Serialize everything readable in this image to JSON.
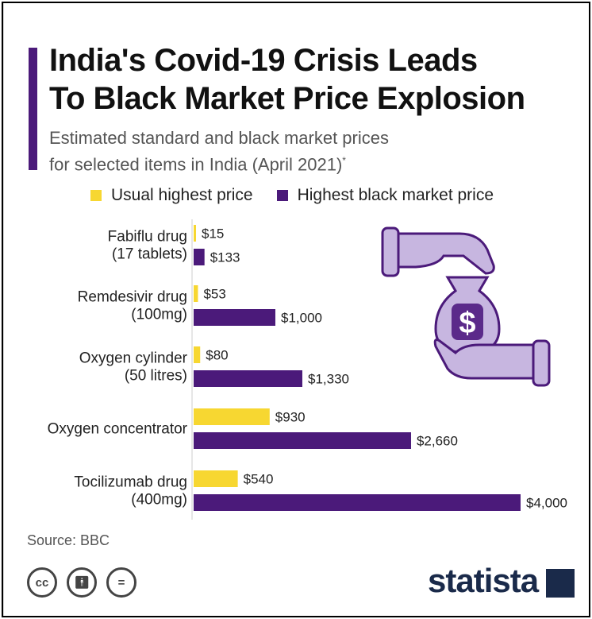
{
  "header": {
    "title_line1": "India's Covid-19 Crisis Leads",
    "title_line2": "To Black Market Price Explosion",
    "subtitle_line1": "Estimated standard and black market prices",
    "subtitle_line2": "for selected items in India (April 2021)",
    "subtitle_mark": "*"
  },
  "colors": {
    "usual": "#f7d731",
    "black": "#4b1a7a",
    "accent": "#4b1a7a"
  },
  "chart_data": {
    "type": "bar",
    "orientation": "horizontal",
    "title": "India's Covid-19 Crisis Leads To Black Market Price Explosion",
    "categories": [
      [
        "Fabiflu drug",
        "(17 tablets)"
      ],
      [
        "Remdesivir drug",
        "(100mg)"
      ],
      [
        "Oxygen cylinder",
        "(50 litres)"
      ],
      [
        "Oxygen concentrator"
      ],
      [
        "Tocilizumab drug",
        "(400mg)"
      ]
    ],
    "series": [
      {
        "name": "Usual highest price",
        "values": [
          15,
          53,
          80,
          930,
          540
        ],
        "labels": [
          "$15",
          "$53",
          "$80",
          "$930",
          "$540"
        ]
      },
      {
        "name": "Highest black market price",
        "values": [
          133,
          1000,
          1330,
          2660,
          4000
        ],
        "labels": [
          "$133",
          "$1,000",
          "$1,330",
          "$2,660",
          "$4,000"
        ]
      }
    ],
    "xlim": [
      0,
      4000
    ],
    "legend": "top",
    "grid": false
  },
  "footer": {
    "source": "Source: BBC",
    "brand": "statista",
    "cc_icons": [
      "cc-icon",
      "by-icon",
      "equals-icon"
    ]
  }
}
